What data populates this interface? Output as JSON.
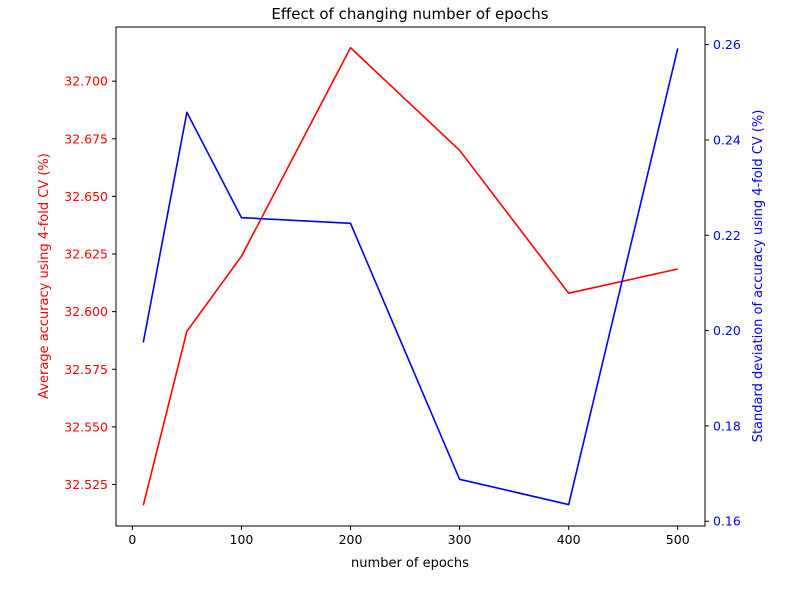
{
  "chart_data": {
    "type": "line",
    "title": "Effect of changing number of epochs",
    "xlabel": "number of epochs",
    "x": [
      10,
      50,
      100,
      200,
      300,
      400,
      500
    ],
    "xlim": [
      -15,
      525
    ],
    "xticks": [
      0,
      100,
      200,
      300,
      400,
      500
    ],
    "grid": false,
    "legend": "none",
    "series": [
      {
        "axis": "left",
        "color": "#ff0000",
        "ylabel": "Average accuracy using 4-fold CV (%)",
        "values": [
          32.516,
          32.5915,
          32.624,
          32.7145,
          32.67,
          32.608,
          32.6185
        ],
        "ylim": [
          32.507,
          32.7235
        ],
        "yticks": [
          "32.525",
          "32.550",
          "32.575",
          "32.600",
          "32.625",
          "32.650",
          "32.675",
          "32.700"
        ]
      },
      {
        "axis": "right",
        "color": "#0000ff",
        "ylabel": "Standard deviation of accuracy using 4-fold CV (%)",
        "values": [
          0.1975,
          0.2458,
          0.2237,
          0.2225,
          0.1688,
          0.1635,
          0.2592
        ],
        "ylim": [
          0.159,
          0.2637
        ],
        "yticks": [
          "0.16",
          "0.18",
          "0.20",
          "0.22",
          "0.24",
          "0.26"
        ]
      }
    ]
  }
}
